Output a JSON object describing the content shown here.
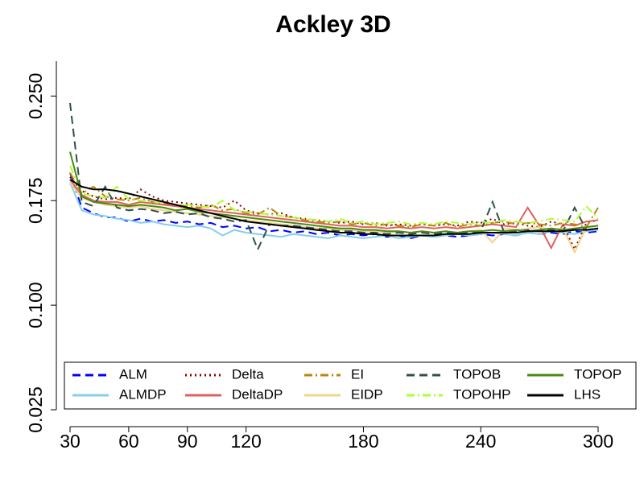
{
  "chart_data": {
    "type": "line",
    "title": "Ackley 3D",
    "x": [
      30,
      36,
      42,
      48,
      54,
      60,
      66,
      72,
      78,
      84,
      90,
      96,
      102,
      108,
      114,
      120,
      126,
      132,
      138,
      144,
      150,
      156,
      162,
      168,
      174,
      180,
      186,
      192,
      198,
      204,
      210,
      216,
      222,
      228,
      234,
      240,
      246,
      252,
      258,
      264,
      270,
      276,
      282,
      288,
      294,
      300
    ],
    "xlim": [
      30,
      300
    ],
    "xticks": [
      30,
      60,
      90,
      120,
      180,
      240,
      300
    ],
    "ylim": [
      0.025,
      0.275
    ],
    "yticks": [
      0.025,
      {
        "value": 0.1,
        "label": "0.100"
      },
      0.175,
      {
        "value": 0.25,
        "label": "0.250"
      }
    ],
    "series": [
      {
        "name": "ALM",
        "color": "#0000ff",
        "linestyle": "dashed",
        "values": [
          0.195,
          0.17,
          0.166,
          0.163,
          0.163,
          0.16,
          0.162,
          0.16,
          0.161,
          0.159,
          0.16,
          0.158,
          0.159,
          0.156,
          0.157,
          0.155,
          0.156,
          0.153,
          0.154,
          0.152,
          0.153,
          0.151,
          0.152,
          0.15,
          0.151,
          0.15,
          0.151,
          0.149,
          0.15,
          0.148,
          0.15,
          0.149,
          0.15,
          0.149,
          0.15,
          0.151,
          0.15,
          0.151,
          0.15,
          0.152,
          0.151,
          0.152,
          0.151,
          0.153,
          0.152,
          0.153
        ]
      },
      {
        "name": "ALMDP",
        "color": "#87ceeb",
        "linestyle": "solid",
        "values": [
          0.188,
          0.168,
          0.165,
          0.164,
          0.162,
          0.161,
          0.159,
          0.16,
          0.158,
          0.157,
          0.156,
          0.157,
          0.155,
          0.15,
          0.154,
          0.152,
          0.151,
          0.15,
          0.149,
          0.151,
          0.15,
          0.149,
          0.148,
          0.15,
          0.149,
          0.148,
          0.149,
          0.15,
          0.148,
          0.149,
          0.15,
          0.149,
          0.15,
          0.151,
          0.15,
          0.151,
          0.152,
          0.151,
          0.15,
          0.152,
          0.151,
          0.153,
          0.152,
          0.151,
          0.153,
          0.154
        ]
      },
      {
        "name": "Delta",
        "color": "#8b0000",
        "linestyle": "dotted",
        "values": [
          0.192,
          0.182,
          0.178,
          0.176,
          0.177,
          0.176,
          0.183,
          0.178,
          0.175,
          0.174,
          0.173,
          0.172,
          0.171,
          0.17,
          0.175,
          0.168,
          0.166,
          0.165,
          0.166,
          0.163,
          0.162,
          0.161,
          0.16,
          0.159,
          0.16,
          0.158,
          0.159,
          0.157,
          0.158,
          0.157,
          0.158,
          0.157,
          0.158,
          0.157,
          0.16,
          0.159,
          0.162,
          0.158,
          0.159,
          0.157,
          0.156,
          0.16,
          0.158,
          0.14,
          0.159,
          0.161
        ]
      },
      {
        "name": "DeltaDP",
        "color": "#e06060",
        "linestyle": "solid",
        "values": [
          0.19,
          0.179,
          0.175,
          0.174,
          0.174,
          0.172,
          0.174,
          0.173,
          0.172,
          0.171,
          0.17,
          0.169,
          0.168,
          0.167,
          0.166,
          0.165,
          0.164,
          0.163,
          0.162,
          0.161,
          0.16,
          0.159,
          0.158,
          0.157,
          0.157,
          0.156,
          0.156,
          0.155,
          0.156,
          0.155,
          0.156,
          0.155,
          0.156,
          0.155,
          0.156,
          0.157,
          0.158,
          0.157,
          0.156,
          0.17,
          0.157,
          0.141,
          0.158,
          0.157,
          0.16,
          0.161
        ]
      },
      {
        "name": "EI",
        "color": "#b8860b",
        "linestyle": "dashdot",
        "values": [
          0.195,
          0.18,
          0.185,
          0.178,
          0.176,
          0.175,
          0.177,
          0.174,
          0.173,
          0.172,
          0.171,
          0.17,
          0.172,
          0.168,
          0.169,
          0.166,
          0.165,
          0.17,
          0.164,
          0.163,
          0.161,
          0.16,
          0.159,
          0.16,
          0.158,
          0.159,
          0.157,
          0.158,
          0.157,
          0.156,
          0.158,
          0.157,
          0.159,
          0.156,
          0.158,
          0.157,
          0.159,
          0.16,
          0.158,
          0.159,
          0.158,
          0.157,
          0.159,
          0.158,
          0.156,
          0.17
        ]
      },
      {
        "name": "EIDP",
        "color": "#f0d58c",
        "linestyle": "solid",
        "values": [
          0.188,
          0.177,
          0.174,
          0.172,
          0.171,
          0.17,
          0.171,
          0.169,
          0.168,
          0.167,
          0.166,
          0.165,
          0.164,
          0.163,
          0.162,
          0.161,
          0.16,
          0.159,
          0.158,
          0.157,
          0.156,
          0.155,
          0.155,
          0.154,
          0.154,
          0.153,
          0.153,
          0.152,
          0.153,
          0.152,
          0.153,
          0.152,
          0.153,
          0.152,
          0.153,
          0.154,
          0.145,
          0.155,
          0.154,
          0.155,
          0.156,
          0.154,
          0.155,
          0.138,
          0.156,
          0.157
        ]
      },
      {
        "name": "TOPOB",
        "color": "#2f4f4f",
        "linestyle": "dashed",
        "values": [
          0.245,
          0.174,
          0.171,
          0.185,
          0.17,
          0.168,
          0.169,
          0.168,
          0.166,
          0.167,
          0.165,
          0.166,
          0.163,
          0.162,
          0.16,
          0.161,
          0.14,
          0.158,
          0.157,
          0.157,
          0.156,
          0.155,
          0.154,
          0.153,
          0.153,
          0.152,
          0.152,
          0.151,
          0.152,
          0.151,
          0.152,
          0.151,
          0.152,
          0.151,
          0.152,
          0.153,
          0.174,
          0.152,
          0.153,
          0.154,
          0.153,
          0.154,
          0.153,
          0.17,
          0.154,
          0.155
        ]
      },
      {
        "name": "TOPOHP",
        "color": "#adff2f",
        "linestyle": "dashdot",
        "values": [
          0.2,
          0.18,
          0.178,
          0.177,
          0.185,
          0.176,
          0.175,
          0.174,
          0.174,
          0.172,
          0.172,
          0.171,
          0.17,
          0.175,
          0.168,
          0.167,
          0.166,
          0.165,
          0.164,
          0.163,
          0.162,
          0.161,
          0.16,
          0.162,
          0.159,
          0.16,
          0.158,
          0.159,
          0.16,
          0.158,
          0.159,
          0.158,
          0.16,
          0.159,
          0.158,
          0.16,
          0.159,
          0.161,
          0.16,
          0.159,
          0.16,
          0.162,
          0.161,
          0.16,
          0.171,
          0.162
        ]
      },
      {
        "name": "TOPOP",
        "color": "#4a8a10",
        "linestyle": "solid",
        "values": [
          0.21,
          0.178,
          0.174,
          0.173,
          0.172,
          0.171,
          0.172,
          0.171,
          0.17,
          0.168,
          0.169,
          0.167,
          0.166,
          0.165,
          0.164,
          0.163,
          0.162,
          0.161,
          0.16,
          0.159,
          0.158,
          0.157,
          0.156,
          0.155,
          0.155,
          0.154,
          0.154,
          0.153,
          0.153,
          0.152,
          0.153,
          0.152,
          0.153,
          0.152,
          0.153,
          0.153,
          0.154,
          0.153,
          0.154,
          0.153,
          0.154,
          0.155,
          0.154,
          0.155,
          0.156,
          0.157
        ]
      },
      {
        "name": "LHS",
        "color": "#000000",
        "linestyle": "solid",
        "values": [
          0.19,
          0.185,
          0.183,
          0.183,
          0.182,
          0.18,
          0.178,
          0.176,
          0.174,
          0.172,
          0.17,
          0.168,
          0.166,
          0.164,
          0.162,
          0.16,
          0.159,
          0.158,
          0.157,
          0.156,
          0.155,
          0.154,
          0.153,
          0.152,
          0.152,
          0.151,
          0.151,
          0.15,
          0.15,
          0.15,
          0.15,
          0.15,
          0.151,
          0.151,
          0.151,
          0.152,
          0.152,
          0.152,
          0.152,
          0.153,
          0.153,
          0.153,
          0.153,
          0.154,
          0.154,
          0.155
        ]
      }
    ]
  }
}
